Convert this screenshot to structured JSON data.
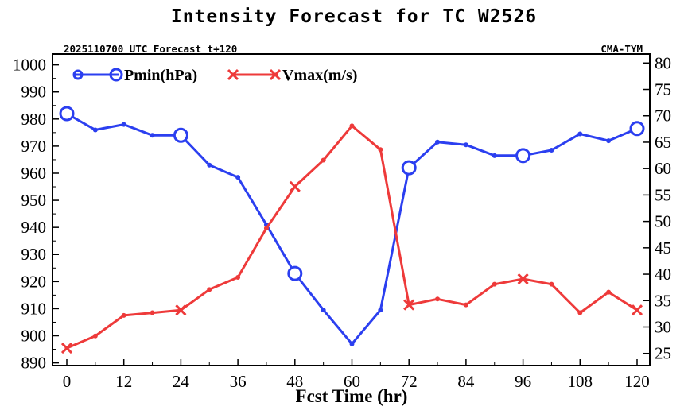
{
  "chart_data": {
    "type": "line",
    "title": "Intensity Forecast for TC W2526",
    "subtitle_left": "2025110700 UTC Forecast t+120",
    "subtitle_right": "CMA-TYM",
    "xlabel": "Fcst Time (hr)",
    "x": [
      0,
      6,
      12,
      18,
      24,
      30,
      36,
      42,
      48,
      54,
      60,
      66,
      72,
      78,
      84,
      90,
      96,
      102,
      108,
      114,
      120
    ],
    "xlim": [
      0,
      120
    ],
    "xticks": [
      "0",
      "12",
      "24",
      "36",
      "48",
      "60",
      "72",
      "84",
      "96",
      "108",
      "120"
    ],
    "y_left": {
      "label": "Pmin(hPa)",
      "ylim": [
        889,
        1004
      ],
      "ticks": [
        "1000",
        "990",
        "980",
        "970",
        "960",
        "950",
        "940",
        "930",
        "920",
        "910",
        "900",
        "890"
      ]
    },
    "y_right": {
      "label": "Vmax(m/s)",
      "ylim": [
        22.7,
        81.7
      ],
      "ticks": [
        "80",
        "75",
        "70",
        "65",
        "60",
        "55",
        "50",
        "45",
        "40",
        "35",
        "30",
        "25"
      ]
    },
    "series": [
      {
        "name": "Pmin(hPa)",
        "axis": "left",
        "color": "#2b3ff0",
        "marker": "circle",
        "values": [
          982,
          976,
          978,
          974,
          974,
          963,
          958.5,
          941,
          923,
          909.5,
          897,
          909.5,
          962,
          971.5,
          970.5,
          966.5,
          966.5,
          968.5,
          974.5,
          972,
          976.5
        ],
        "highlight_x": [
          0,
          24,
          48,
          72,
          96,
          120
        ]
      },
      {
        "name": "Vmax(m/s)",
        "axis": "right",
        "color": "#ee3a3a",
        "marker": "x",
        "values": [
          26,
          28.3,
          32.2,
          32.7,
          33.2,
          37.1,
          39.4,
          48.7,
          56.6,
          61.6,
          68.1,
          63.6,
          34.2,
          35.3,
          34.2,
          38.1,
          39.1,
          38.1,
          32.7,
          36.6,
          33.2
        ],
        "highlight_x": [
          0,
          24,
          48,
          72,
          96,
          120
        ]
      }
    ]
  }
}
